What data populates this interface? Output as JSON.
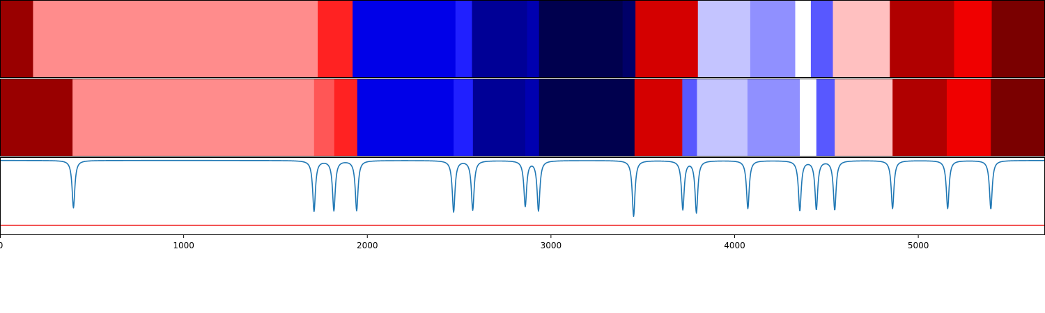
{
  "chart_data": {
    "type": "heatmap",
    "title": "",
    "xlabel": "",
    "ylabel": "",
    "xlim": [
      0,
      5690
    ],
    "x_ticks": [
      {
        "value": 0,
        "label": "0"
      },
      {
        "value": 1000,
        "label": "1000"
      },
      {
        "value": 2000,
        "label": "2000"
      },
      {
        "value": 3000,
        "label": "3000"
      },
      {
        "value": 4000,
        "label": "4000"
      },
      {
        "value": 5000,
        "label": "5000"
      }
    ],
    "segment_tracks": [
      {
        "name": "track-1",
        "segments": [
          {
            "start": 0,
            "end": 180,
            "color": "#990000"
          },
          {
            "start": 180,
            "end": 1730,
            "color": "#ff8c8c"
          },
          {
            "start": 1730,
            "end": 1920,
            "color": "#ff2222"
          },
          {
            "start": 1920,
            "end": 2480,
            "color": "#0000e8"
          },
          {
            "start": 2480,
            "end": 2570,
            "color": "#2020ff"
          },
          {
            "start": 2570,
            "end": 2870,
            "color": "#000096"
          },
          {
            "start": 2870,
            "end": 2935,
            "color": "#0000b0"
          },
          {
            "start": 2935,
            "end": 3390,
            "color": "#00004e"
          },
          {
            "start": 3390,
            "end": 3460,
            "color": "#000068"
          },
          {
            "start": 3460,
            "end": 3800,
            "color": "#d40000"
          },
          {
            "start": 3800,
            "end": 4085,
            "color": "#c4c4ff"
          },
          {
            "start": 4085,
            "end": 4330,
            "color": "#9090ff"
          },
          {
            "start": 4330,
            "end": 4415,
            "color": "#ffffff"
          },
          {
            "start": 4415,
            "end": 4535,
            "color": "#5858ff"
          },
          {
            "start": 4535,
            "end": 4845,
            "color": "#ffc0c0"
          },
          {
            "start": 4845,
            "end": 5195,
            "color": "#b00000"
          },
          {
            "start": 5195,
            "end": 5400,
            "color": "#f00000"
          },
          {
            "start": 5400,
            "end": 5690,
            "color": "#7a0000"
          }
        ]
      },
      {
        "name": "track-2",
        "segments": [
          {
            "start": 0,
            "end": 395,
            "color": "#990000"
          },
          {
            "start": 395,
            "end": 1710,
            "color": "#ff8c8c"
          },
          {
            "start": 1710,
            "end": 1820,
            "color": "#ff5656"
          },
          {
            "start": 1820,
            "end": 1945,
            "color": "#ff2222"
          },
          {
            "start": 1945,
            "end": 2470,
            "color": "#0000e8"
          },
          {
            "start": 2470,
            "end": 2575,
            "color": "#2020ff"
          },
          {
            "start": 2575,
            "end": 2860,
            "color": "#000096"
          },
          {
            "start": 2860,
            "end": 2935,
            "color": "#0000b0"
          },
          {
            "start": 2935,
            "end": 3455,
            "color": "#00004e"
          },
          {
            "start": 3455,
            "end": 3715,
            "color": "#d40000"
          },
          {
            "start": 3715,
            "end": 3795,
            "color": "#5858ff"
          },
          {
            "start": 3795,
            "end": 4070,
            "color": "#c4c4ff"
          },
          {
            "start": 4070,
            "end": 4355,
            "color": "#9090ff"
          },
          {
            "start": 4355,
            "end": 4445,
            "color": "#ffffff"
          },
          {
            "start": 4445,
            "end": 4545,
            "color": "#5858ff"
          },
          {
            "start": 4545,
            "end": 4860,
            "color": "#ffc0c0"
          },
          {
            "start": 4860,
            "end": 5155,
            "color": "#b00000"
          },
          {
            "start": 5155,
            "end": 5395,
            "color": "#f00000"
          },
          {
            "start": 5395,
            "end": 5690,
            "color": "#7a0000"
          }
        ]
      }
    ],
    "signal": {
      "name": "signal",
      "color": "#1f77b4",
      "ylim": [
        -1.15,
        0.05
      ],
      "baseline": 0,
      "dips": [
        {
          "x": 400,
          "depth": 0.73
        },
        {
          "x": 1710,
          "depth": 0.78
        },
        {
          "x": 1818,
          "depth": 0.77
        },
        {
          "x": 1942,
          "depth": 0.77
        },
        {
          "x": 2470,
          "depth": 0.79
        },
        {
          "x": 2574,
          "depth": 0.76
        },
        {
          "x": 2860,
          "depth": 0.7
        },
        {
          "x": 2932,
          "depth": 0.77
        },
        {
          "x": 3450,
          "depth": 0.86
        },
        {
          "x": 3718,
          "depth": 0.75
        },
        {
          "x": 3792,
          "depth": 0.8
        },
        {
          "x": 4072,
          "depth": 0.74
        },
        {
          "x": 4355,
          "depth": 0.77
        },
        {
          "x": 4445,
          "depth": 0.75
        },
        {
          "x": 4545,
          "depth": 0.76
        },
        {
          "x": 4860,
          "depth": 0.74
        },
        {
          "x": 5160,
          "depth": 0.74
        },
        {
          "x": 5395,
          "depth": 0.75
        }
      ],
      "threshold": {
        "value": -1.0,
        "color": "#ee1c1c"
      }
    }
  }
}
